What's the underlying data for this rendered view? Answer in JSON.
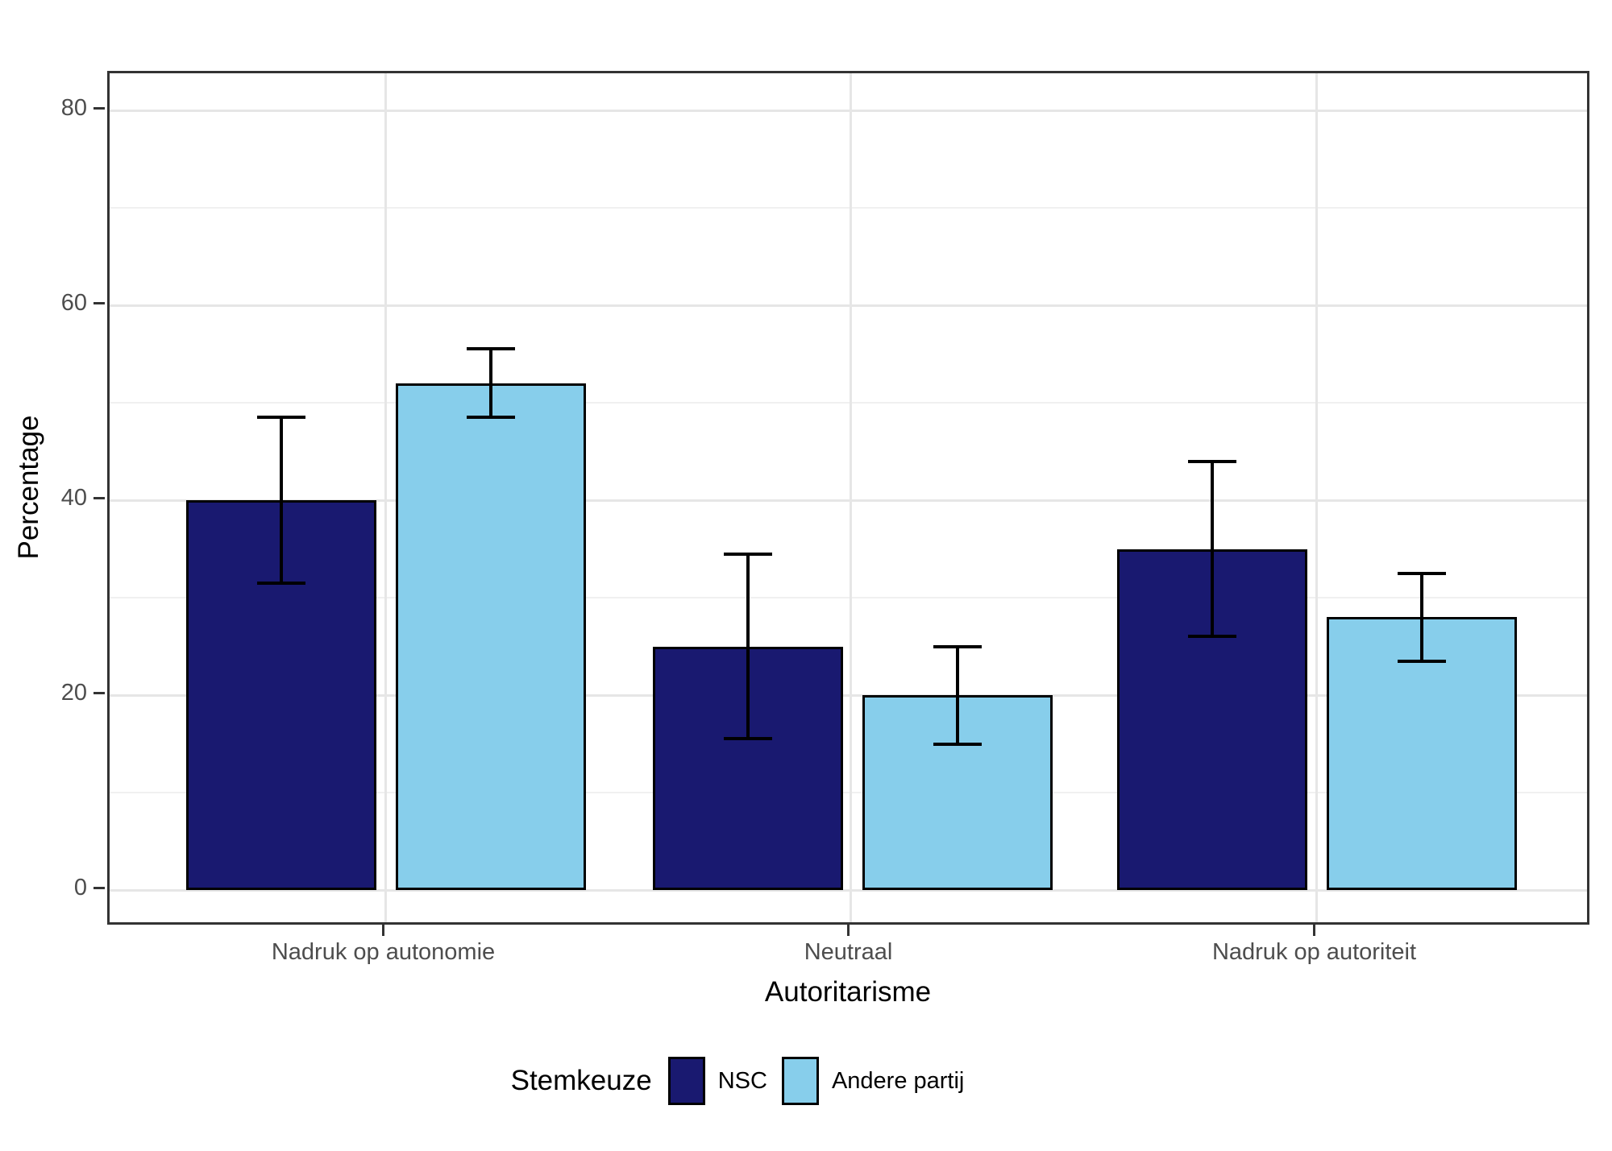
{
  "chart_data": {
    "type": "bar",
    "title": "",
    "xlabel": "Autoritarisme",
    "ylabel": "Percentage",
    "categories": [
      "Nadruk op autonomie",
      "Neutraal",
      "Nadruk op autoriteit"
    ],
    "series": [
      {
        "name": "NSC",
        "color": "#191970",
        "values": [
          40,
          25,
          35
        ],
        "error_low": [
          31.5,
          15.5,
          26
        ],
        "error_high": [
          48.5,
          34.5,
          44
        ]
      },
      {
        "name": "Andere partij",
        "color": "#87CEEB",
        "values": [
          52,
          20,
          28
        ],
        "error_low": [
          48.5,
          15,
          23.5
        ],
        "error_high": [
          55.5,
          25,
          32.5
        ]
      }
    ],
    "ylim": [
      0,
      84
    ],
    "yticks": [
      0,
      20,
      40,
      60,
      80
    ],
    "minor_gridlines": [
      10,
      30,
      50,
      70
    ],
    "grid": "on",
    "legend_title": "Stemkeuze",
    "legend_position": "bottom"
  },
  "colors": {
    "bar_outline": "#000000",
    "error_bar": "#000000",
    "grid_major": "#e6e6e6",
    "grid_minor": "#f0f0f0",
    "panel_border": "#333333",
    "tick_label": "#4d4d4d",
    "axis_title": "#000000",
    "background": "#ffffff"
  }
}
